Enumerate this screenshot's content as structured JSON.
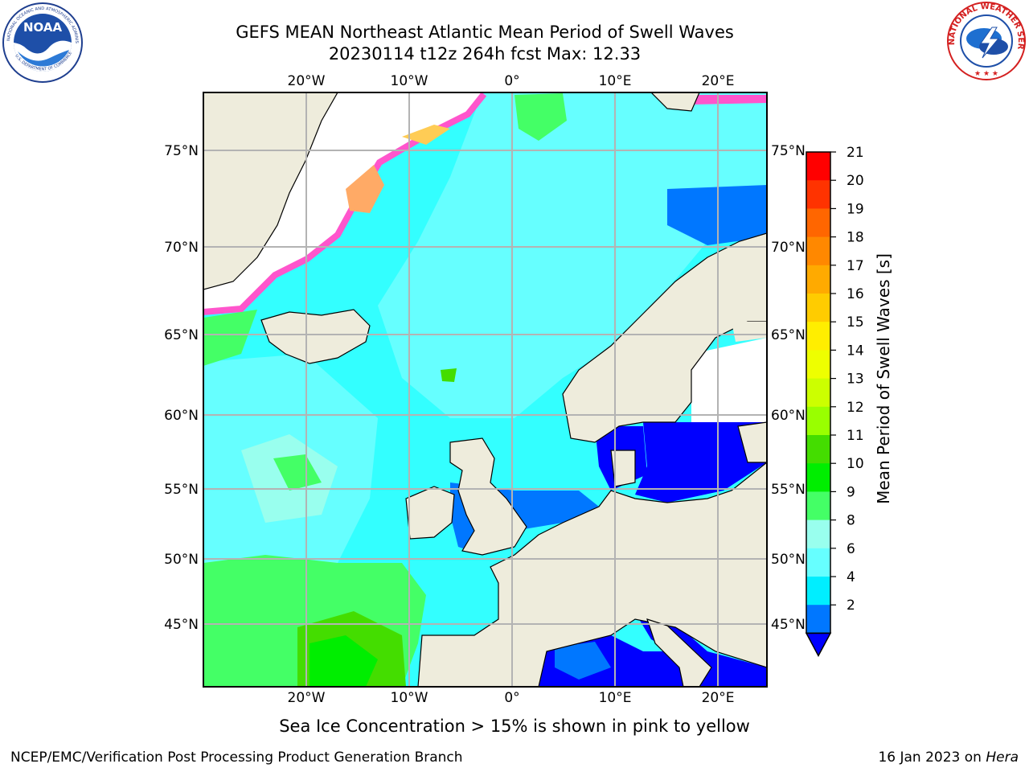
{
  "header": {
    "title_line1": "GEFS MEAN Northeast Atlantic Mean Period of Swell Waves",
    "title_line2": "20230114 t12z 264h fcst   Max: 12.33"
  },
  "logos": {
    "left": {
      "name": "NOAA",
      "ring_text": "NATIONAL OCEANIC AND ATMOSPHERIC ADMINISTRATION",
      "bottom_text": "U.S. DEPARTMENT OF COMMERCE"
    },
    "right": {
      "ring_text": "NATIONAL WEATHER SERVICE"
    }
  },
  "map": {
    "lon_ticks_top": [
      "20°W",
      "10°W",
      "0°",
      "10°E",
      "20°E"
    ],
    "lon_ticks_bottom": [
      "20°W",
      "10°W",
      "0°",
      "10°E",
      "20°E"
    ],
    "lat_ticks_left": [
      "75°N",
      "70°N",
      "65°N",
      "60°N",
      "55°N",
      "50°N",
      "45°N"
    ],
    "lat_ticks_right": [
      "75°N",
      "70°N",
      "65°N",
      "60°N",
      "55°N",
      "50°N",
      "45°N"
    ],
    "colors": {
      "land": "#eeecdc",
      "ocean": "#33ffff",
      "grid": "#b3b3b3"
    }
  },
  "colorbar": {
    "label": "Mean Period of Swell Waves [s]",
    "ticks": [
      "21",
      "20",
      "19",
      "18",
      "17",
      "16",
      "15",
      "14",
      "13",
      "12",
      "11",
      "10",
      "9",
      "8",
      "6",
      "4",
      "2"
    ],
    "colors_top_to_bottom": [
      "#ff0000",
      "#ff3300",
      "#ff6600",
      "#ff8800",
      "#ffaa00",
      "#ffcc00",
      "#ffee00",
      "#eeff00",
      "#ccff00",
      "#99ff00",
      "#44dd00",
      "#00ee00",
      "#44ff66",
      "#99ffee",
      "#66ffff",
      "#00eeff",
      "#0077ff"
    ],
    "under_color": "#0000ff"
  },
  "footer": {
    "note": "Sea Ice Concentration > 15% is shown in pink to yellow",
    "credit": "NCEP/EMC/Verification Post Processing Product Generation Branch",
    "date": "16 Jan 2023 on ",
    "host": "Hera"
  }
}
